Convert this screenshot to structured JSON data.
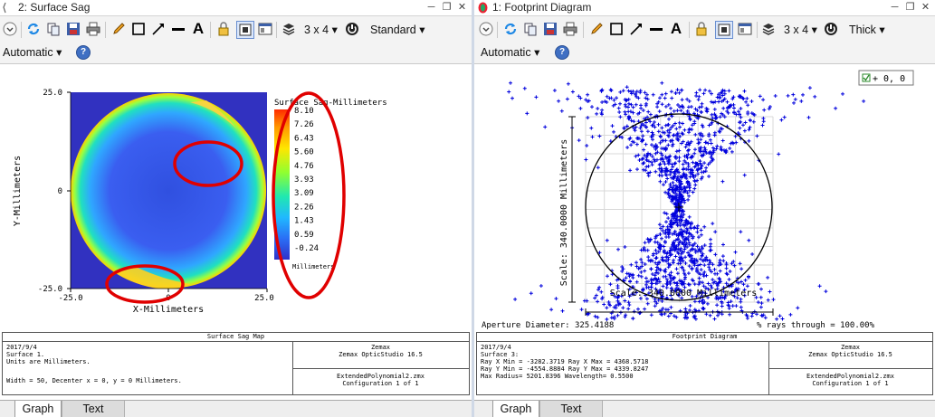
{
  "left_window": {
    "title": "2: Surface Sag",
    "toolbar": {
      "grid_label": "3 x 4",
      "mode_label": "Standard",
      "scale_label": "Automatic"
    },
    "plot": {
      "y_axis_label": "Y-Millimeters",
      "x_axis_label": "X-Millimeters",
      "y_ticks": [
        "25.0",
        "0",
        "-25.0"
      ],
      "x_ticks": [
        "-25.0",
        "0",
        "25.0"
      ],
      "colorbar_title": "Surface Sag-Millimeters",
      "colorbar_values": [
        "8.10",
        "7.26",
        "6.43",
        "5.60",
        "4.76",
        "3.93",
        "3.09",
        "2.26",
        "1.43",
        "0.59",
        "-0.24"
      ],
      "colorbar_unit": "Millimeters"
    },
    "info": {
      "title": "Surface Sag Map",
      "lines": [
        "2017/9/4",
        "Surface 1.",
        "Units are Millimeters.",
        "Width = 50, Decenter x = 0, y = 0 Millimeters."
      ],
      "company": "Zemax",
      "product": "Zemax OpticStudio 16.5",
      "file": "ExtendedPolynomial2.zmx",
      "config": "Configuration 1 of 1"
    },
    "tabs": [
      "Graph",
      "Text"
    ],
    "annotation_color": "#e00000"
  },
  "right_window": {
    "title": "1: Footprint Diagram",
    "toolbar": {
      "grid_label": "3 x 4",
      "mode_label": "Thick",
      "scale_label": "Automatic"
    },
    "legend": {
      "text": "+ 0, 0"
    },
    "plot": {
      "scale_vertical": "Scale: 340.0000 Millimeters",
      "scale_horizontal": "Scale: 340.0000 Millimeters",
      "aperture": "Aperture Diameter: 325.4188",
      "rays": "% rays through = 100.00%",
      "ray_color": "#0000dd"
    },
    "info": {
      "title": "Footprint Diagram",
      "lines": [
        "2017/9/4",
        "Surface 3:",
        "Ray X Min = -3282.3719 Ray X Max = 4368.5718",
        "Ray Y Min = -4554.8884 Ray Y Max = 4339.8247",
        "Max Radius= 5201.8396 Wavelength=    0.5500"
      ],
      "company": "Zemax",
      "product": "Zemax OpticStudio 16.5",
      "file": "ExtendedPolynomial2.zmx",
      "config": "Configuration 1 of 1"
    },
    "tabs": [
      "Graph",
      "Text"
    ]
  }
}
